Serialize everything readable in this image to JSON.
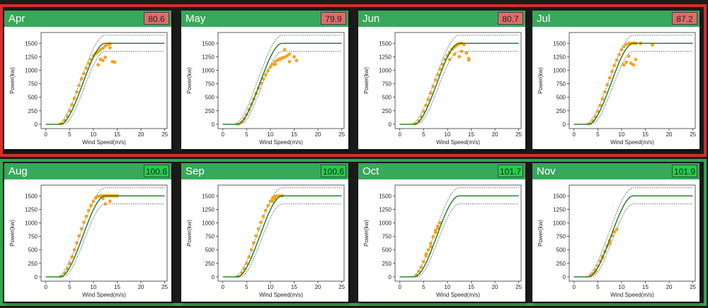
{
  "charts_common": {
    "xlabel": "Wind Speed(m/s)",
    "ylabel": "Power(kw)",
    "x_ticks": [
      0,
      5,
      10,
      15,
      20,
      25
    ],
    "y_ticks": [
      0,
      250,
      500,
      750,
      1000,
      1250,
      1500
    ],
    "xlim": [
      -1,
      25.5
    ],
    "ylim": [
      -80,
      1700
    ],
    "rated_power": 1500,
    "upper_limit": 1650,
    "lower_limit": 1350,
    "colors": {
      "scatter": "#f5a31a",
      "curve": "#1d7a1d",
      "limits": "#555577"
    }
  },
  "chart_data": [
    {
      "type": "scatter",
      "title": "Apr",
      "value": "80.6",
      "status": "low",
      "x": [
        3.2,
        4.0,
        4.5,
        5.0,
        5.5,
        6.0,
        6.5,
        7.0,
        7.5,
        8.0,
        8.5,
        9.0,
        9.5,
        10.0,
        10.5,
        11.0,
        11.5,
        12.0,
        12.5,
        13.0,
        13.5,
        14.0,
        14.5,
        11.5,
        12.5,
        13.5,
        11.0,
        12.0
      ],
      "y": [
        10,
        70,
        150,
        250,
        360,
        480,
        600,
        720,
        840,
        940,
        1040,
        1130,
        1200,
        1270,
        1310,
        1340,
        1380,
        1410,
        1450,
        1480,
        1490,
        1160,
        1150,
        1200,
        1240,
        1420,
        1100,
        1180
      ]
    },
    {
      "type": "scatter",
      "title": "May",
      "value": "79.9",
      "status": "low",
      "x": [
        3.2,
        4.0,
        4.5,
        5.0,
        5.5,
        6.0,
        6.5,
        7.0,
        7.5,
        8.0,
        8.5,
        9.0,
        9.5,
        10.0,
        10.5,
        11.0,
        11.5,
        12.0,
        12.5,
        13.0,
        13.5,
        14.0,
        15.0,
        11.0,
        12.0,
        13.0,
        14.0,
        15.5
      ],
      "y": [
        5,
        40,
        100,
        180,
        270,
        370,
        470,
        570,
        670,
        760,
        840,
        920,
        990,
        1060,
        1110,
        1160,
        1190,
        1210,
        1230,
        1240,
        1270,
        1300,
        1250,
        1110,
        1200,
        1380,
        1160,
        1180
      ]
    },
    {
      "type": "scatter",
      "title": "Jun",
      "value": "80.7",
      "status": "low",
      "x": [
        3.2,
        4.0,
        4.5,
        5.0,
        5.5,
        6.0,
        6.5,
        7.0,
        7.5,
        8.0,
        8.5,
        9.0,
        9.5,
        10.0,
        10.5,
        11.0,
        11.5,
        12.0,
        12.5,
        13.0,
        13.5,
        14.0,
        14.5,
        10.5,
        11.5,
        12.5,
        13.0,
        14.5
      ],
      "y": [
        10,
        60,
        140,
        240,
        350,
        460,
        580,
        700,
        820,
        920,
        1020,
        1110,
        1200,
        1270,
        1330,
        1390,
        1430,
        1460,
        1490,
        1500,
        1480,
        1320,
        1220,
        1200,
        1300,
        1250,
        1350,
        1190
      ]
    },
    {
      "type": "scatter",
      "title": "Jul",
      "value": "87.2",
      "status": "low",
      "x": [
        3.2,
        4.0,
        4.5,
        5.0,
        5.5,
        6.0,
        6.5,
        7.0,
        7.5,
        8.0,
        8.5,
        9.0,
        9.5,
        10.0,
        10.5,
        11.0,
        11.5,
        12.0,
        12.5,
        13.0,
        14.0,
        16.5,
        10.5,
        11.0,
        12.0,
        13.0,
        11.5,
        12.5
      ],
      "y": [
        10,
        60,
        140,
        240,
        350,
        470,
        600,
        730,
        860,
        980,
        1090,
        1190,
        1290,
        1380,
        1440,
        1480,
        1500,
        1500,
        1500,
        1500,
        1500,
        1470,
        1100,
        1150,
        1130,
        1200,
        1260,
        1100
      ]
    },
    {
      "type": "scatter",
      "title": "Aug",
      "value": "100.6",
      "status": "high",
      "x": [
        3.2,
        4.0,
        4.5,
        5.0,
        5.5,
        6.0,
        6.5,
        7.0,
        7.5,
        8.0,
        8.5,
        9.0,
        9.5,
        10.0,
        10.5,
        11.0,
        11.5,
        12.0,
        12.5,
        13.0,
        13.5,
        14.0,
        14.5,
        12.5,
        13.5,
        12.0,
        15.0
      ],
      "y": [
        10,
        70,
        150,
        250,
        370,
        500,
        630,
        760,
        890,
        1010,
        1120,
        1230,
        1320,
        1400,
        1460,
        1490,
        1500,
        1500,
        1500,
        1500,
        1500,
        1500,
        1500,
        1350,
        1400,
        1450,
        1500
      ]
    },
    {
      "type": "scatter",
      "title": "Sep",
      "value": "100.6",
      "status": "high",
      "x": [
        3.2,
        4.0,
        4.5,
        5.0,
        5.5,
        6.0,
        6.5,
        7.0,
        7.5,
        8.0,
        8.5,
        9.0,
        9.5,
        10.0,
        10.5,
        11.0,
        11.5,
        12.0,
        12.5,
        11.0,
        10.5
      ],
      "y": [
        10,
        70,
        150,
        250,
        370,
        500,
        630,
        760,
        890,
        1010,
        1120,
        1230,
        1320,
        1400,
        1460,
        1490,
        1500,
        1500,
        1500,
        1450,
        1400
      ]
    },
    {
      "type": "scatter",
      "title": "Oct",
      "value": "101.7",
      "status": "high",
      "x": [
        3.5,
        4.0,
        4.5,
        5.0,
        5.5,
        6.0,
        6.5,
        7.0,
        7.5,
        8.0,
        8.5,
        5.5,
        6.5,
        7.5,
        8.0
      ],
      "y": [
        30,
        100,
        180,
        280,
        390,
        500,
        620,
        740,
        860,
        940,
        1000,
        420,
        560,
        820,
        900
      ]
    },
    {
      "type": "scatter",
      "title": "Nov",
      "value": "101.9",
      "status": "high",
      "x": [
        3.5,
        4.0,
        4.5,
        5.0,
        5.5,
        6.0,
        6.5,
        7.0,
        7.5,
        8.0,
        8.5,
        9.0,
        4.5,
        6.0,
        7.5
      ],
      "y": [
        20,
        60,
        130,
        200,
        290,
        380,
        470,
        570,
        670,
        760,
        830,
        880,
        100,
        360,
        620
      ]
    }
  ]
}
